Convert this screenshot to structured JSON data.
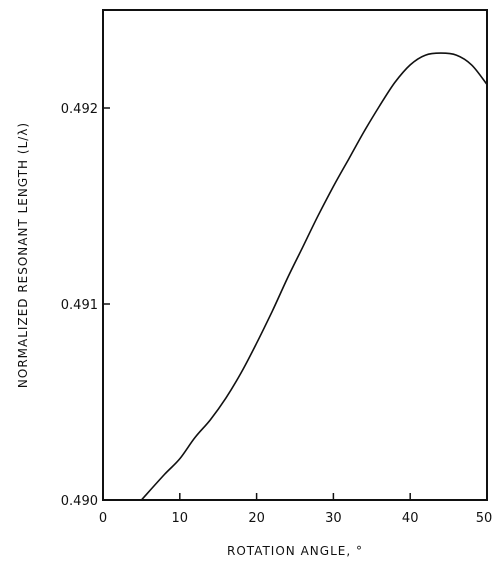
{
  "chart_data": {
    "type": "line",
    "title": "",
    "xlabel": "ROTATION ANGLE, °",
    "ylabel": "NORMALIZED RESONANT LENGTH (L/λ)",
    "xlim": [
      0,
      50
    ],
    "ylim": [
      0.49,
      0.4925
    ],
    "x_ticks": [
      0,
      10,
      20,
      30,
      40,
      50
    ],
    "x_tick_labels": [
      "0",
      "10",
      "20",
      "30",
      "40",
      "50"
    ],
    "y_ticks": [
      0.49,
      0.491,
      0.492
    ],
    "y_tick_labels": [
      "0.490",
      "0.491",
      "0.492"
    ],
    "grid": false,
    "series": [
      {
        "x": [
          5,
          8,
          10,
          12,
          14,
          16,
          18,
          20,
          22,
          24,
          26,
          28,
          30,
          32,
          34,
          36,
          38,
          40,
          42,
          44,
          46,
          48,
          50
        ],
        "y": [
          0.49,
          0.49013,
          0.49021,
          0.49032,
          0.49041,
          0.49052,
          0.49065,
          0.4908,
          0.49096,
          0.49113,
          0.49129,
          0.49145,
          0.4916,
          0.49174,
          0.49188,
          0.49201,
          0.49213,
          0.49222,
          0.49227,
          0.49228,
          0.49227,
          0.49222,
          0.49212
        ]
      }
    ],
    "colors": {
      "line": "#111111",
      "axes": "#111111",
      "background": "#ffffff"
    }
  }
}
